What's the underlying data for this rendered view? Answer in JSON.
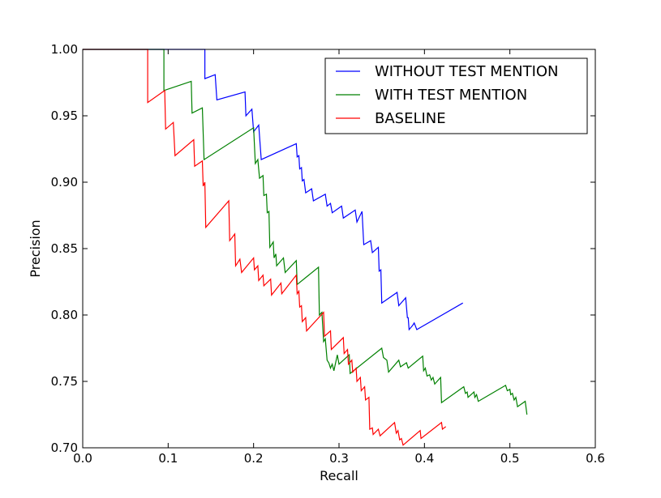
{
  "chart_data": {
    "type": "line",
    "title": "",
    "xlabel": "Recall",
    "ylabel": "Precision",
    "xlim": [
      0.0,
      0.6
    ],
    "ylim": [
      0.7,
      1.0
    ],
    "xticks": [
      "0.0",
      "0.1",
      "0.2",
      "0.3",
      "0.4",
      "0.5",
      "0.6"
    ],
    "yticks": [
      "0.70",
      "0.75",
      "0.80",
      "0.85",
      "0.90",
      "0.95",
      "1.00"
    ],
    "grid": false,
    "legend_position": "top-right",
    "series": [
      {
        "name": "WITHOUT TEST MENTION",
        "color": "#0000ff",
        "points": [
          [
            0.0,
            1.0
          ],
          [
            0.143,
            1.0
          ],
          [
            0.143,
            0.978
          ],
          [
            0.155,
            0.981
          ],
          [
            0.157,
            0.962
          ],
          [
            0.19,
            0.968
          ],
          [
            0.191,
            0.95
          ],
          [
            0.198,
            0.955
          ],
          [
            0.2,
            0.938
          ],
          [
            0.206,
            0.943
          ],
          [
            0.209,
            0.917
          ],
          [
            0.25,
            0.929
          ],
          [
            0.251,
            0.919
          ],
          [
            0.253,
            0.92
          ],
          [
            0.254,
            0.91
          ],
          [
            0.256,
            0.911
          ],
          [
            0.257,
            0.901
          ],
          [
            0.259,
            0.902
          ],
          [
            0.261,
            0.892
          ],
          [
            0.268,
            0.895
          ],
          [
            0.27,
            0.886
          ],
          [
            0.284,
            0.891
          ],
          [
            0.286,
            0.882
          ],
          [
            0.29,
            0.884
          ],
          [
            0.292,
            0.877
          ],
          [
            0.303,
            0.882
          ],
          [
            0.305,
            0.873
          ],
          [
            0.319,
            0.879
          ],
          [
            0.321,
            0.87
          ],
          [
            0.327,
            0.878
          ],
          [
            0.329,
            0.853
          ],
          [
            0.337,
            0.856
          ],
          [
            0.339,
            0.847
          ],
          [
            0.346,
            0.851
          ],
          [
            0.347,
            0.833
          ],
          [
            0.349,
            0.834
          ],
          [
            0.35,
            0.809
          ],
          [
            0.368,
            0.817
          ],
          [
            0.37,
            0.807
          ],
          [
            0.378,
            0.813
          ],
          [
            0.38,
            0.798
          ],
          [
            0.381,
            0.798
          ],
          [
            0.382,
            0.789
          ],
          [
            0.386,
            0.792
          ],
          [
            0.388,
            0.794
          ],
          [
            0.391,
            0.789
          ],
          [
            0.445,
            0.809
          ]
        ]
      },
      {
        "name": "WITH TEST MENTION",
        "color": "#008000",
        "points": [
          [
            0.0,
            1.0
          ],
          [
            0.095,
            1.0
          ],
          [
            0.095,
            0.969
          ],
          [
            0.127,
            0.976
          ],
          [
            0.128,
            0.952
          ],
          [
            0.14,
            0.956
          ],
          [
            0.142,
            0.917
          ],
          [
            0.2,
            0.941
          ],
          [
            0.202,
            0.914
          ],
          [
            0.205,
            0.917
          ],
          [
            0.207,
            0.903
          ],
          [
            0.211,
            0.905
          ],
          [
            0.212,
            0.89
          ],
          [
            0.215,
            0.891
          ],
          [
            0.216,
            0.877
          ],
          [
            0.218,
            0.878
          ],
          [
            0.219,
            0.851
          ],
          [
            0.223,
            0.855
          ],
          [
            0.224,
            0.843
          ],
          [
            0.226,
            0.846
          ],
          [
            0.227,
            0.837
          ],
          [
            0.235,
            0.843
          ],
          [
            0.237,
            0.832
          ],
          [
            0.25,
            0.841
          ],
          [
            0.251,
            0.823
          ],
          [
            0.276,
            0.836
          ],
          [
            0.277,
            0.8
          ],
          [
            0.28,
            0.802
          ],
          [
            0.282,
            0.78
          ],
          [
            0.284,
            0.782
          ],
          [
            0.286,
            0.766
          ],
          [
            0.288,
            0.764
          ],
          [
            0.29,
            0.76
          ],
          [
            0.292,
            0.763
          ],
          [
            0.294,
            0.758
          ],
          [
            0.298,
            0.77
          ],
          [
            0.3,
            0.763
          ],
          [
            0.312,
            0.77
          ],
          [
            0.313,
            0.756
          ],
          [
            0.35,
            0.775
          ],
          [
            0.352,
            0.768
          ],
          [
            0.356,
            0.766
          ],
          [
            0.358,
            0.757
          ],
          [
            0.37,
            0.766
          ],
          [
            0.372,
            0.761
          ],
          [
            0.379,
            0.764
          ],
          [
            0.381,
            0.76
          ],
          [
            0.398,
            0.769
          ],
          [
            0.399,
            0.758
          ],
          [
            0.401,
            0.76
          ],
          [
            0.403,
            0.754
          ],
          [
            0.406,
            0.755
          ],
          [
            0.408,
            0.751
          ],
          [
            0.41,
            0.753
          ],
          [
            0.412,
            0.748
          ],
          [
            0.419,
            0.753
          ],
          [
            0.42,
            0.734
          ],
          [
            0.446,
            0.746
          ],
          [
            0.448,
            0.741
          ],
          [
            0.45,
            0.742
          ],
          [
            0.451,
            0.738
          ],
          [
            0.458,
            0.742
          ],
          [
            0.459,
            0.738
          ],
          [
            0.461,
            0.74
          ],
          [
            0.463,
            0.735
          ],
          [
            0.495,
            0.747
          ],
          [
            0.497,
            0.743
          ],
          [
            0.5,
            0.744
          ],
          [
            0.501,
            0.74
          ],
          [
            0.503,
            0.741
          ],
          [
            0.505,
            0.736
          ],
          [
            0.507,
            0.738
          ],
          [
            0.509,
            0.731
          ],
          [
            0.518,
            0.735
          ],
          [
            0.52,
            0.725
          ]
        ]
      },
      {
        "name": "BASELINE",
        "color": "#ff0000",
        "points": [
          [
            0.0,
            1.0
          ],
          [
            0.076,
            1.0
          ],
          [
            0.076,
            0.96
          ],
          [
            0.096,
            0.969
          ],
          [
            0.097,
            0.94
          ],
          [
            0.106,
            0.945
          ],
          [
            0.108,
            0.92
          ],
          [
            0.13,
            0.932
          ],
          [
            0.131,
            0.912
          ],
          [
            0.14,
            0.916
          ],
          [
            0.141,
            0.897
          ],
          [
            0.143,
            0.9
          ],
          [
            0.144,
            0.866
          ],
          [
            0.171,
            0.886
          ],
          [
            0.172,
            0.856
          ],
          [
            0.178,
            0.861
          ],
          [
            0.179,
            0.837
          ],
          [
            0.184,
            0.842
          ],
          [
            0.186,
            0.832
          ],
          [
            0.2,
            0.843
          ],
          [
            0.201,
            0.834
          ],
          [
            0.205,
            0.837
          ],
          [
            0.206,
            0.826
          ],
          [
            0.211,
            0.83
          ],
          [
            0.212,
            0.822
          ],
          [
            0.22,
            0.827
          ],
          [
            0.221,
            0.815
          ],
          [
            0.232,
            0.824
          ],
          [
            0.233,
            0.816
          ],
          [
            0.25,
            0.83
          ],
          [
            0.251,
            0.816
          ],
          [
            0.253,
            0.818
          ],
          [
            0.254,
            0.806
          ],
          [
            0.256,
            0.807
          ],
          [
            0.257,
            0.795
          ],
          [
            0.261,
            0.798
          ],
          [
            0.262,
            0.788
          ],
          [
            0.282,
            0.802
          ],
          [
            0.283,
            0.784
          ],
          [
            0.29,
            0.788
          ],
          [
            0.291,
            0.774
          ],
          [
            0.305,
            0.783
          ],
          [
            0.306,
            0.771
          ],
          [
            0.31,
            0.774
          ],
          [
            0.311,
            0.763
          ],
          [
            0.315,
            0.766
          ],
          [
            0.316,
            0.757
          ],
          [
            0.32,
            0.76
          ],
          [
            0.321,
            0.75
          ],
          [
            0.325,
            0.753
          ],
          [
            0.326,
            0.743
          ],
          [
            0.33,
            0.746
          ],
          [
            0.331,
            0.736
          ],
          [
            0.335,
            0.738
          ],
          [
            0.336,
            0.714
          ],
          [
            0.339,
            0.715
          ],
          [
            0.34,
            0.71
          ],
          [
            0.346,
            0.714
          ],
          [
            0.348,
            0.709
          ],
          [
            0.365,
            0.719
          ],
          [
            0.367,
            0.711
          ],
          [
            0.369,
            0.713
          ],
          [
            0.371,
            0.706
          ],
          [
            0.373,
            0.707
          ],
          [
            0.375,
            0.702
          ],
          [
            0.395,
            0.713
          ],
          [
            0.396,
            0.707
          ],
          [
            0.42,
            0.719
          ],
          [
            0.421,
            0.714
          ],
          [
            0.425,
            0.716
          ]
        ]
      }
    ]
  }
}
